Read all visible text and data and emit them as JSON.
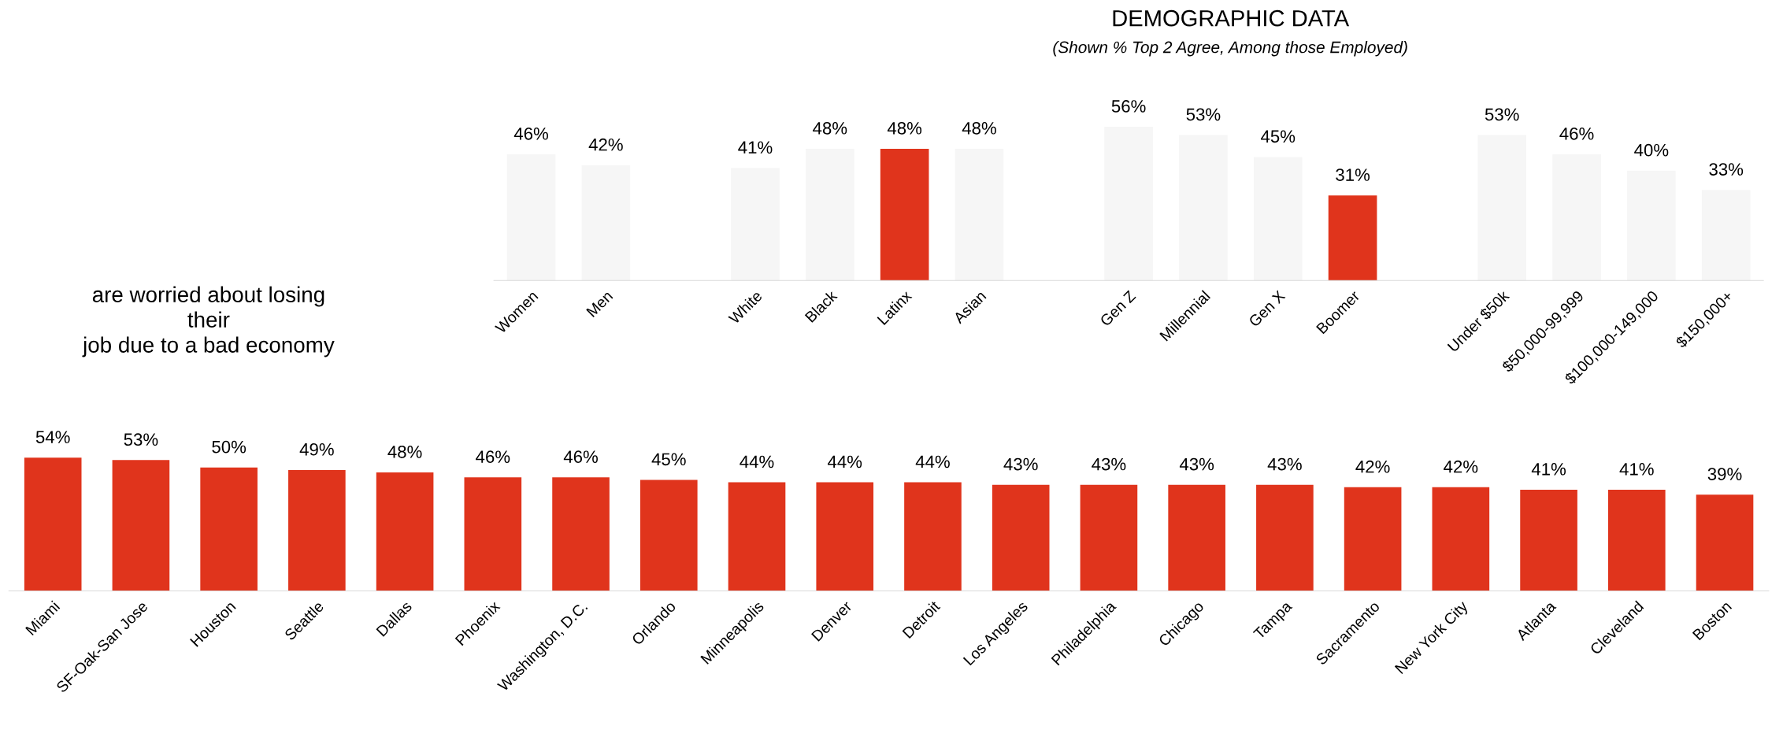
{
  "chart_data": [
    {
      "type": "bar",
      "title": "DEMOGRAPHIC DATA",
      "subtitle": "(Shown % Top 2 Agree, Among those Employed)",
      "categories": [
        "Women",
        "Men",
        null,
        "White",
        "Black",
        "Latinx",
        "Asian",
        null,
        "Gen Z",
        "Millennial",
        "Gen X",
        "Boomer",
        null,
        "Under $50k",
        "$50,000-99,999",
        "$100,000-149,000",
        "$150,000+"
      ],
      "values": [
        46,
        42,
        null,
        41,
        48,
        48,
        48,
        null,
        56,
        53,
        45,
        31,
        null,
        53,
        46,
        40,
        33
      ],
      "value_labels": [
        "46%",
        "42%",
        null,
        "41%",
        "48%",
        "48%",
        "48%",
        null,
        "56%",
        "53%",
        "45%",
        "31%",
        null,
        "53%",
        "46%",
        "40%",
        "33%"
      ],
      "colors": [
        "#f6f6f6",
        "#f6f6f6",
        null,
        "#f6f6f6",
        "#f6f6f6",
        "#e0341c",
        "#f6f6f6",
        null,
        "#f6f6f6",
        "#f6f6f6",
        "#f6f6f6",
        "#e0341c",
        null,
        "#f6f6f6",
        "#f6f6f6",
        "#f6f6f6",
        "#f6f6f6"
      ],
      "tick_labels": "x"
    },
    {
      "type": "bar",
      "annotations": [
        "are worried about losing\ntheir\njob due to a bad economy"
      ],
      "categories": [
        "Miami",
        "SF-Oak-San Jose",
        "Houston",
        "Seattle",
        "Dallas",
        "Phoenix",
        "Washington, D.C.",
        "Orlando",
        "Minneapolis",
        "Denver",
        "Detroit",
        "Los Angeles",
        "Philadelphia",
        "Chicago",
        "Tampa",
        "Sacramento",
        "New York City",
        "Atlanta",
        "Cleveland",
        "Boston"
      ],
      "values": [
        54,
        53,
        50,
        49,
        48,
        46,
        46,
        45,
        44,
        44,
        44,
        43,
        43,
        43,
        43,
        42,
        42,
        41,
        41,
        39
      ],
      "value_labels": [
        "54%",
        "53%",
        "50%",
        "49%",
        "48%",
        "46%",
        "46%",
        "45%",
        "44%",
        "44%",
        "44%",
        "43%",
        "43%",
        "43%",
        "43%",
        "42%",
        "42%",
        "41%",
        "41%",
        "39%"
      ],
      "color": "#e0341c",
      "tick_labels": "x"
    }
  ]
}
